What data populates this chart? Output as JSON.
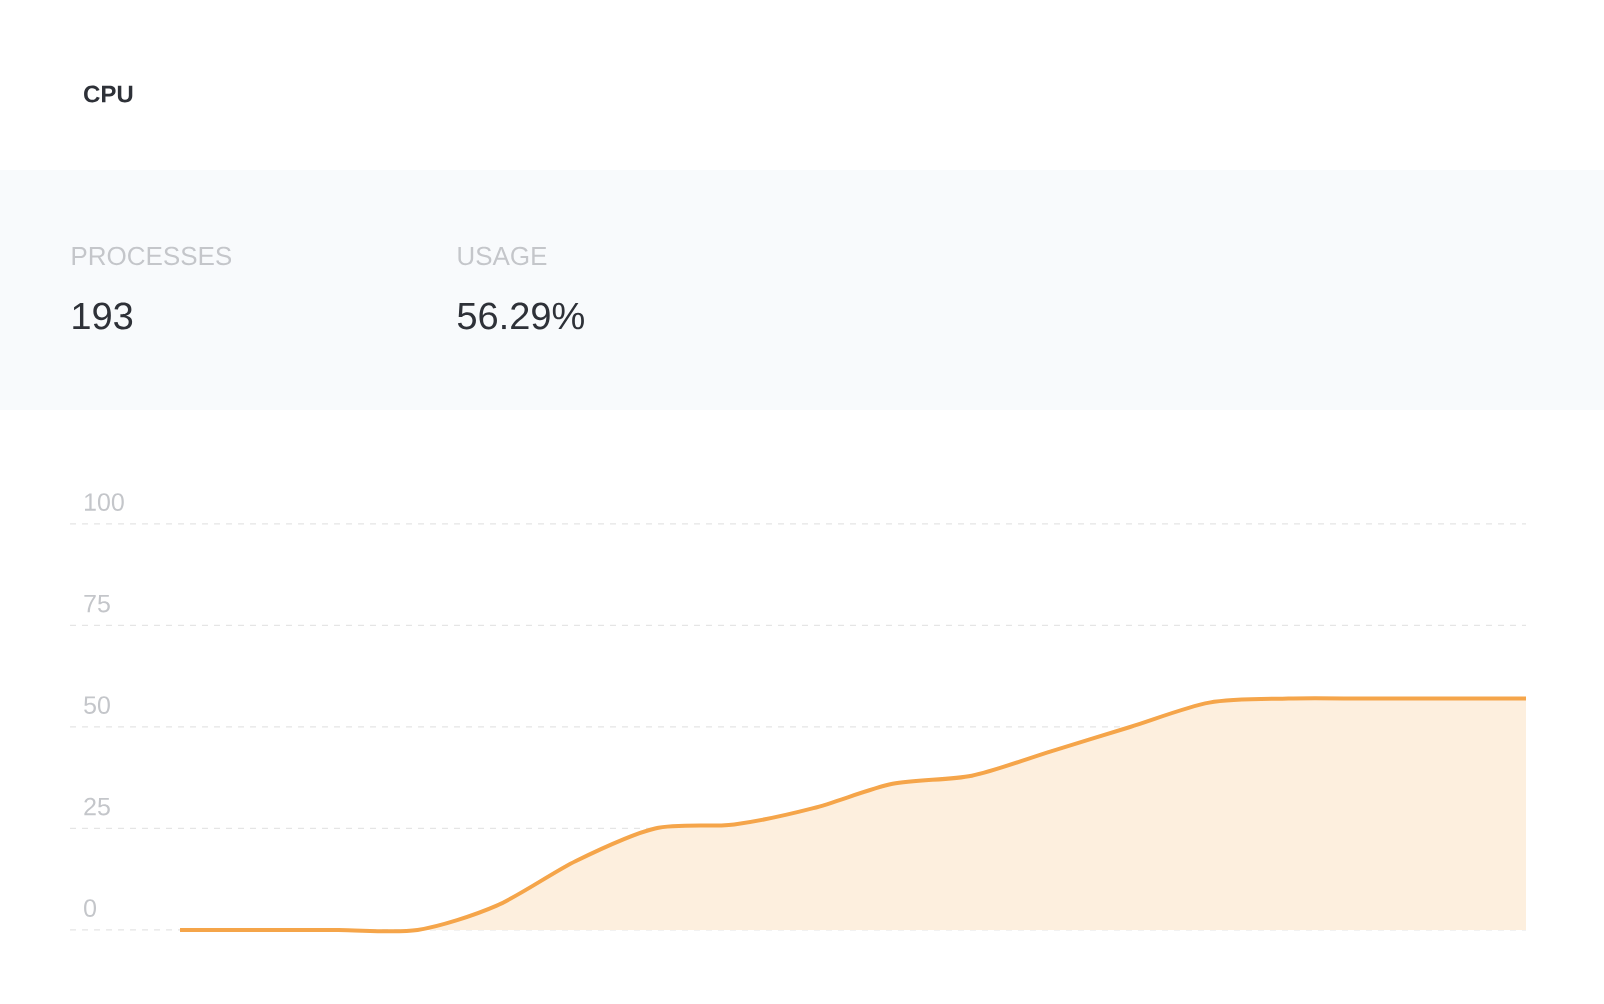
{
  "chart_data": {
    "type": "area",
    "title": "CPU",
    "annotations": [
      "PROCESSES",
      "193",
      "USAGE",
      "56.29%"
    ],
    "categories": [
      null,
      null,
      null,
      null,
      null,
      null,
      null,
      null,
      null,
      null,
      null,
      null,
      null,
      null,
      null,
      null,
      null,
      null
    ],
    "series": [
      {
        "color": "#f5a54a",
        "values": [
          0,
          0,
          0,
          0,
          6,
          17,
          25,
          26,
          30,
          36,
          38,
          44,
          50,
          56,
          57,
          57,
          57,
          57
        ]
      }
    ],
    "ylim": [
      0,
      100
    ],
    "yticks": [
      0,
      25,
      50,
      75,
      100
    ],
    "grid": "y",
    "tick_labels": "y",
    "line_style": "solid",
    "marker": "none"
  }
}
